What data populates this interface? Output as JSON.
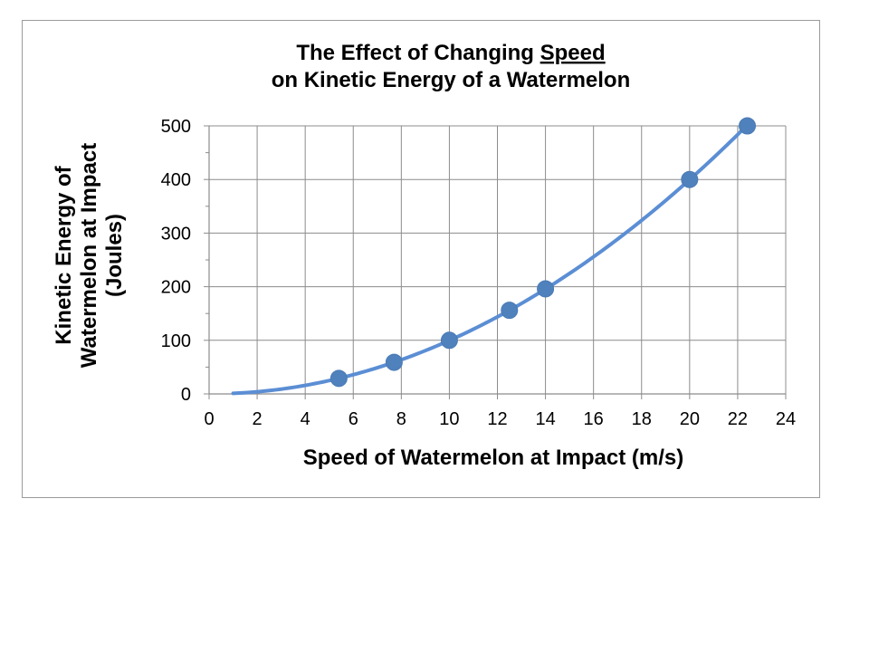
{
  "chart_data": {
    "type": "scatter",
    "title_line1_prefix": "The Effect of Changing ",
    "title_line1_emphasis": "Speed",
    "title_line2": "on Kinetic Energy of a Watermelon",
    "xlabel": "Speed of Watermelon at Impact (m/s)",
    "ylabel_lines": [
      "Kinetic Energy of",
      "Watermelon at Impact",
      "(Joules)"
    ],
    "xlim": [
      0,
      24
    ],
    "ylim": [
      0,
      500
    ],
    "x_ticks": [
      "0",
      "2",
      "4",
      "6",
      "8",
      "10",
      "12",
      "14",
      "16",
      "18",
      "20",
      "22",
      "24"
    ],
    "y_ticks": [
      "0",
      "100",
      "200",
      "300",
      "400",
      "500"
    ],
    "grid": true,
    "series": [
      {
        "name": "Kinetic Energy",
        "color": "#5b8ed4",
        "marker_color": "#4f81bd",
        "x": [
          5.4,
          7.7,
          10.0,
          12.5,
          14.0,
          20.0,
          22.4
        ],
        "y": [
          29,
          59,
          100,
          156,
          196,
          400,
          500
        ],
        "trendline": "power",
        "trend_range": [
          1.0,
          22.4
        ]
      }
    ]
  }
}
